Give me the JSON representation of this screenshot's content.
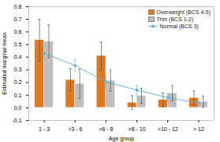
{
  "chart_data": {
    "type": "bar",
    "xlabel": "Age group",
    "ylabel": "Estimated marginal mean",
    "categories": [
      "1 - 3",
      ">3 - 6",
      ">6 - 8",
      ">8 - 10",
      ">10 - 12",
      "> 12"
    ],
    "series": [
      {
        "name": "Overweight (BCS 4-5)",
        "color": "#E07820",
        "values": [
          0.535,
          0.22,
          0.41,
          0.04,
          0.062,
          0.078
        ],
        "errors": [
          0.165,
          0.09,
          0.11,
          0.055,
          0.055,
          0.055
        ]
      },
      {
        "name": "Thin (BCS 1-2)",
        "color": "#BEBEBE",
        "values": [
          0.525,
          0.19,
          0.215,
          0.095,
          0.115,
          0.048
        ],
        "errors": [
          0.13,
          0.115,
          0.085,
          0.06,
          0.06,
          0.045
        ]
      },
      {
        "name": "Normal (BCS 3)",
        "type": "line",
        "marker": "circle",
        "color": "#6EB4D4",
        "values": [
          0.43,
          0.335,
          0.205,
          0.14,
          0.08,
          0.038
        ],
        "errors": [
          0.055,
          0.045,
          0.045,
          0.038,
          0.03,
          0.025
        ]
      }
    ],
    "ylim": [
      -0.1,
      0.8
    ],
    "yticks": [
      -0.1,
      {
        "value": 0,
        "label": "0.0"
      },
      0.1,
      0.2,
      0.3,
      0.4,
      0.5,
      0.6,
      0.7,
      0.8
    ],
    "grid": false,
    "legend": "upper right"
  }
}
